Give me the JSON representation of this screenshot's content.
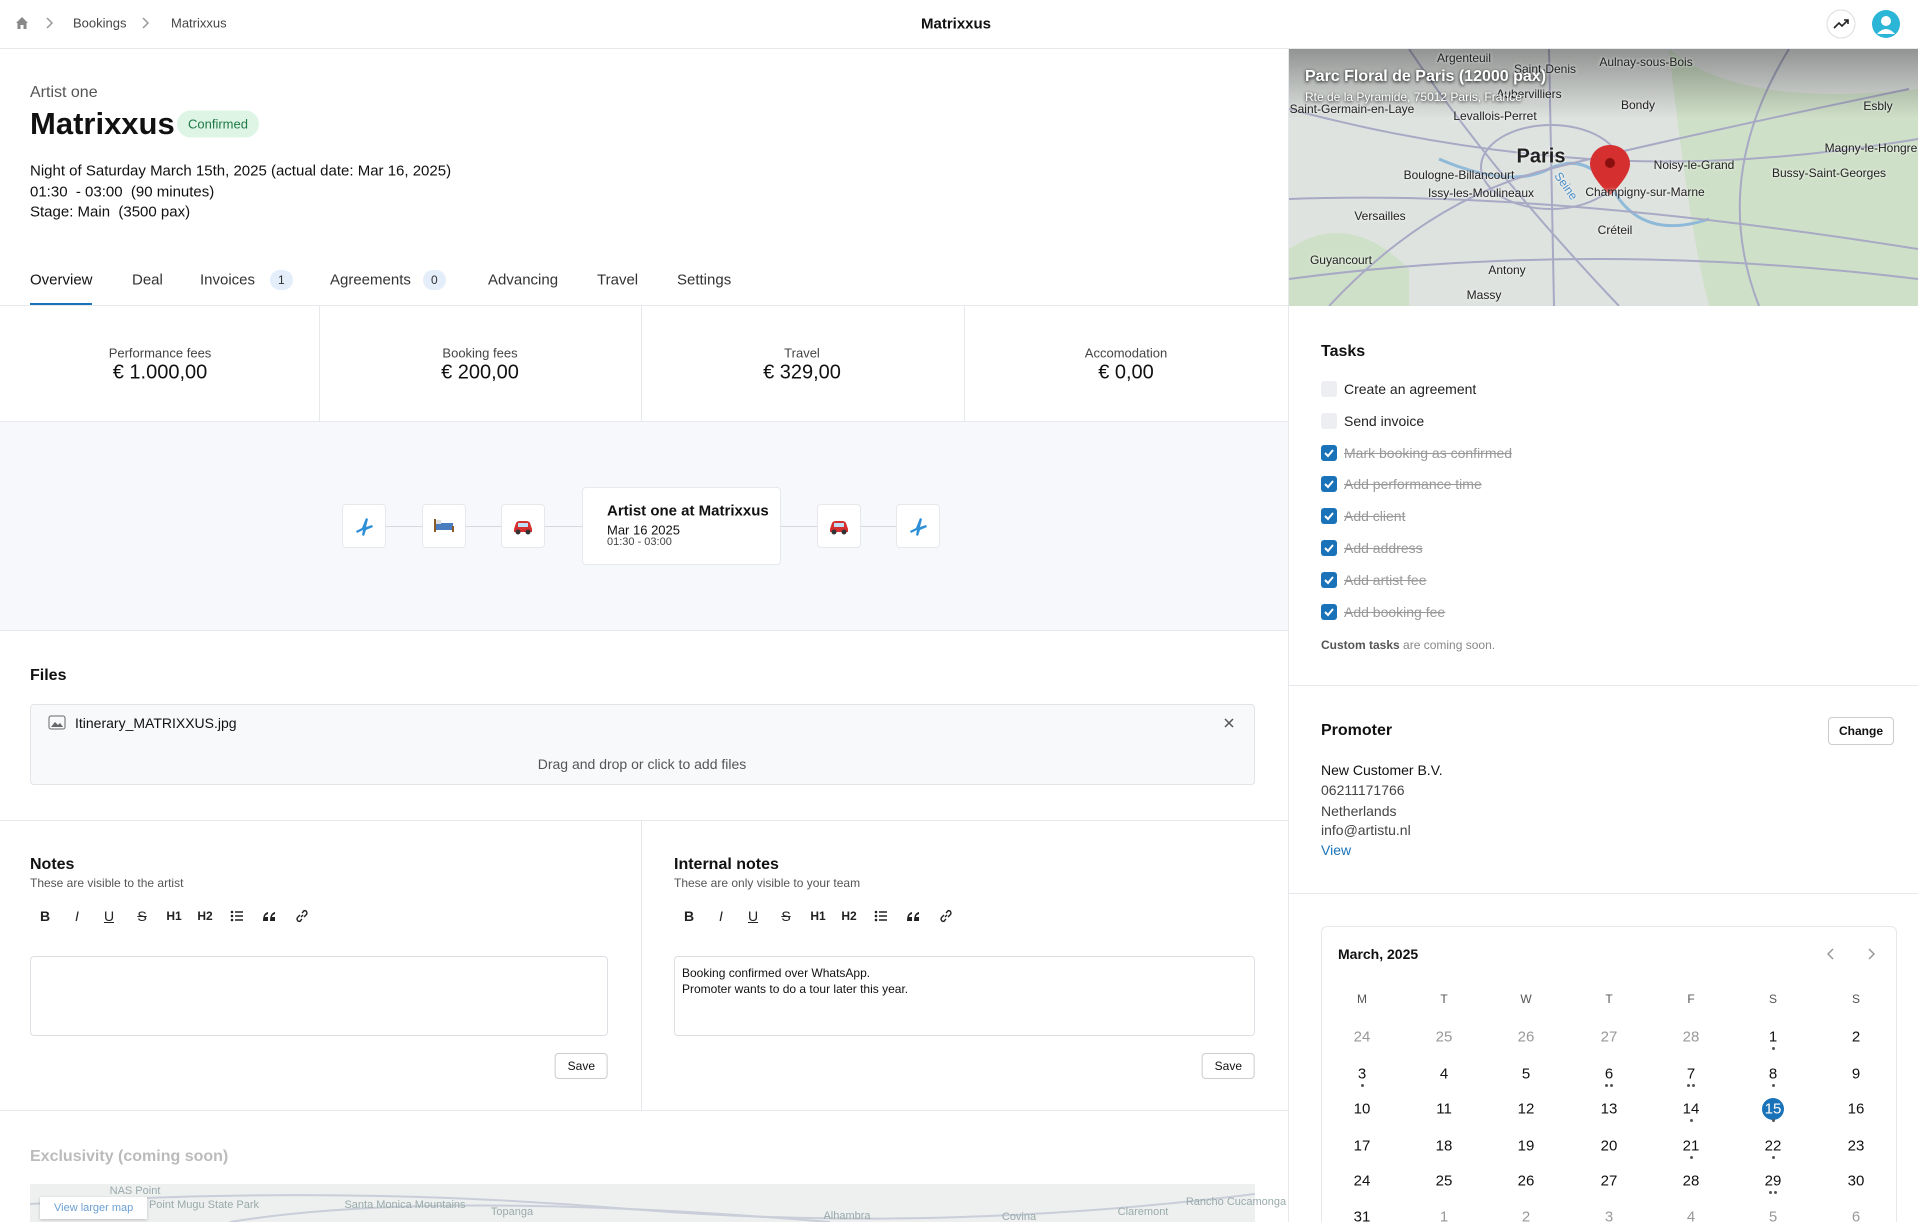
{
  "breadcrumb": [
    "Bookings",
    "Matrixxus"
  ],
  "page_title": "Matrixxus",
  "header": {
    "artist": "Artist one",
    "title": "Matrixxus",
    "status": "Confirmed",
    "details": [
      "Night of Saturday March 15th, 2025 (actual date: Mar 16, 2025)",
      "01:30  - 03:00  (90 minutes)",
      "Stage: Main  (3500 pax)"
    ]
  },
  "tabs": [
    {
      "label": "Overview"
    },
    {
      "label": "Deal"
    },
    {
      "label": "Invoices",
      "count": "1"
    },
    {
      "label": "Agreements",
      "count": "0"
    },
    {
      "label": "Advancing"
    },
    {
      "label": "Travel"
    },
    {
      "label": "Settings"
    }
  ],
  "stats": [
    {
      "label": "Performance fees",
      "value": "€ 1.000,00"
    },
    {
      "label": "Booking fees",
      "value": "€ 200,00"
    },
    {
      "label": "Travel",
      "value": "€ 329,00"
    },
    {
      "label": "Accomodation",
      "value": "€ 0,00"
    }
  ],
  "timeline": {
    "title": "Artist one at Matrixxus",
    "date": "Mar 16 2025",
    "time": "01:30 - 03:00"
  },
  "files": {
    "heading": "Files",
    "items": [
      "Itinerary_MATRIXXUS.jpg"
    ],
    "dropzone": "Drag and drop or click to add files"
  },
  "toolbar": [
    "B",
    "I",
    "U",
    "S",
    "H1",
    "H2"
  ],
  "notes": [
    {
      "heading": "Notes",
      "subtitle": "These are visible to the artist",
      "text": [],
      "button": "Save"
    },
    {
      "heading": "Internal notes",
      "subtitle": "These are only visible to your team",
      "text": [
        "Booking confirmed over WhatsApp.",
        "Promoter wants to do a tour later this year."
      ],
      "button": "Save"
    }
  ],
  "exclusivity": {
    "heading": "Exclusivity (coming soon)",
    "map_link": "View larger map",
    "map_labels": [
      "NAS Point",
      "Point Mugu State Park",
      "Santa Monica Mountains",
      "Topanga",
      "Alhambra",
      "Covina",
      "Claremont",
      "Rancho Cucamonga"
    ]
  },
  "venue": {
    "name": "Parc Floral de Paris (12000 pax)",
    "address": "Rte de la Pyramide, 75012 Paris, France",
    "map_labels": [
      "Argenteuil",
      "Saint-Denis",
      "Aulnay-sous-Bois",
      "Aubervilliers",
      "Saint-Germain-en-Laye",
      "Levallois-Perret",
      "Bondy",
      "Esbly",
      "Paris",
      "Magny-le-Hongre",
      "Noisy-le-Grand",
      "Boulogne-Billancourt",
      "Bussy-Saint-Georges",
      "Issy-les-Moulineaux",
      "Champigny-sur-Marne",
      "Seine",
      "Versailles",
      "Créteil",
      "Guyancourt",
      "Antony",
      "Massy"
    ]
  },
  "tasks": {
    "heading": "Tasks",
    "items": [
      {
        "label": "Create an agreement",
        "done": false
      },
      {
        "label": "Send invoice",
        "done": false
      },
      {
        "label": "Mark booking as confirmed",
        "done": true
      },
      {
        "label": "Add performance time",
        "done": true
      },
      {
        "label": "Add client",
        "done": true
      },
      {
        "label": "Add address",
        "done": true
      },
      {
        "label": "Add artist fee",
        "done": true
      },
      {
        "label": "Add booking fee",
        "done": true
      }
    ],
    "footer_bold": "Custom tasks",
    "footer": "are coming soon."
  },
  "promoter": {
    "heading": "Promoter",
    "button": "Change",
    "lines": [
      "New Customer B.V.",
      "06211171766",
      "Netherlands",
      "info@artistu.nl"
    ],
    "link": "View"
  },
  "calendar": {
    "month": "March, 2025",
    "weekdays": [
      "M",
      "T",
      "W",
      "T",
      "F",
      "S",
      "S"
    ],
    "selected": "15",
    "weeks": [
      [
        "24",
        "25",
        "26",
        "27",
        "28",
        "1",
        "2"
      ],
      [
        "3",
        "4",
        "5",
        "6",
        "7",
        "8",
        "9"
      ],
      [
        "10",
        "11",
        "12",
        "13",
        "14",
        "15",
        "16"
      ],
      [
        "17",
        "18",
        "19",
        "20",
        "21",
        "22",
        "23"
      ],
      [
        "24",
        "25",
        "26",
        "27",
        "28",
        "29",
        "30"
      ],
      [
        "31",
        "1",
        "2",
        "3",
        "4",
        "5",
        "6"
      ]
    ]
  }
}
